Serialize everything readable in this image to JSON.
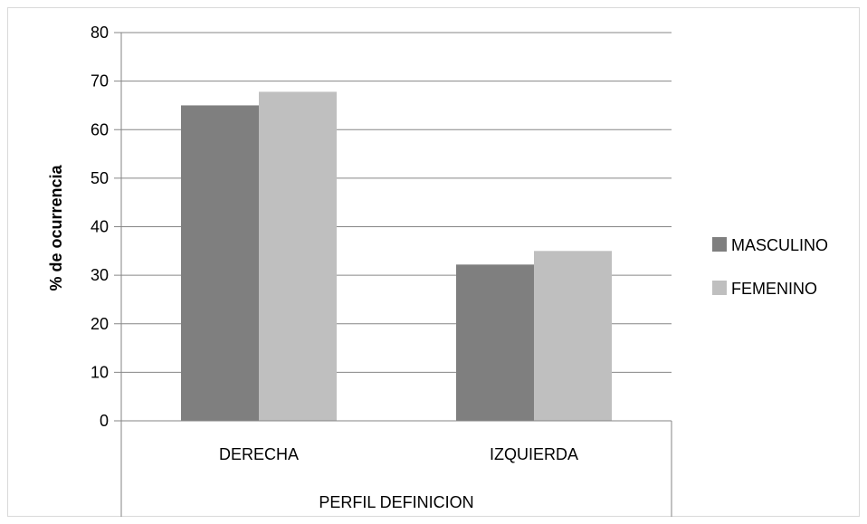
{
  "chart_data": {
    "type": "bar",
    "categories": [
      "DERECHA",
      "IZQUIERDA"
    ],
    "series": [
      {
        "name": "MASCULINO",
        "values": [
          65,
          32.2
        ],
        "color": "#7f7f7f"
      },
      {
        "name": "FEMENINO",
        "values": [
          67.8,
          35
        ],
        "color": "#bfbfbf"
      }
    ],
    "xlabel": "PERFIL DEFINICION",
    "ylabel": "% de ocurrencia",
    "ylim": [
      0,
      80
    ],
    "yticks": [
      "0",
      "10",
      "20",
      "30",
      "40",
      "50",
      "60",
      "70",
      "80"
    ],
    "grid": true,
    "legend_position": "right"
  }
}
